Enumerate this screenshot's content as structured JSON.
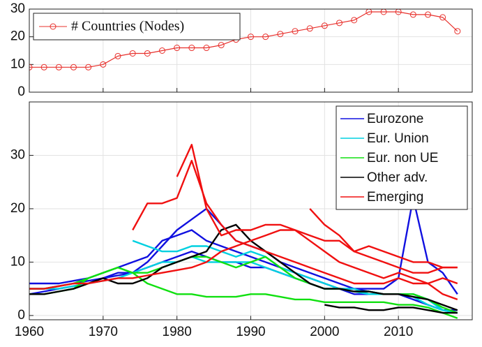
{
  "chart_data": [
    {
      "type": "line",
      "marker": "circle",
      "legend": "upper left",
      "grid": true,
      "x": [
        1960,
        1962,
        1964,
        1966,
        1968,
        1970,
        1972,
        1974,
        1976,
        1978,
        1980,
        1982,
        1984,
        1986,
        1988,
        1990,
        1992,
        1994,
        1996,
        1998,
        2000,
        2002,
        2004,
        2006,
        2008,
        2010,
        2012,
        2014,
        2016,
        2018
      ],
      "xlim": [
        1960,
        2020
      ],
      "ylim": [
        0,
        30
      ],
      "yticks": [
        0,
        10,
        20,
        30
      ],
      "series": [
        {
          "name": "# Countries (Nodes)",
          "color": "#e8302c",
          "values": [
            9,
            9,
            9,
            9,
            9,
            10,
            13,
            14,
            14,
            15,
            16,
            16,
            16,
            17,
            19,
            20,
            20,
            21,
            22,
            23,
            24,
            25,
            26,
            29,
            29,
            29,
            28,
            28,
            27,
            22
          ]
        }
      ]
    },
    {
      "type": "line",
      "legend": "upper right",
      "grid": true,
      "x": [
        1960,
        1962,
        1964,
        1966,
        1968,
        1970,
        1972,
        1974,
        1976,
        1978,
        1980,
        1982,
        1984,
        1986,
        1988,
        1990,
        1992,
        1994,
        1996,
        1998,
        2000,
        2002,
        2004,
        2006,
        2008,
        2010,
        2012,
        2014,
        2016,
        2018
      ],
      "xlim": [
        1960,
        2020
      ],
      "xticks": [
        1960,
        1970,
        1980,
        1990,
        2000,
        2010
      ],
      "ylim": [
        -0.8,
        40
      ],
      "yticks": [
        0,
        10,
        20,
        30
      ],
      "groups": [
        {
          "name": "Eurozone",
          "color": "#1010e0",
          "lines": [
            [
              5,
              5,
              5.5,
              6,
              6.5,
              7,
              7.5,
              8,
              10,
              13,
              16,
              18,
              20,
              17,
              14,
              13,
              12,
              10,
              9,
              8,
              7,
              6,
              5,
              5,
              5,
              7,
              22,
              10,
              8,
              4
            ],
            [
              6,
              6,
              6,
              6.5,
              7,
              8,
              9,
              10,
              11,
              14,
              15,
              16,
              14,
              13,
              12,
              11,
              10,
              9,
              8,
              7,
              6,
              5,
              5,
              4.5,
              4,
              4,
              4,
              3,
              1,
              1
            ],
            [
              4,
              4.5,
              5,
              5.5,
              6,
              7,
              8,
              8,
              9,
              10,
              11,
              12,
              11,
              10,
              10,
              9,
              9,
              8,
              7,
              6,
              5,
              5,
              4,
              4,
              4,
              4,
              3,
              2,
              1,
              0.5
            ]
          ]
        },
        {
          "name": "Eur. Union",
          "color": "#00d0e0",
          "lines": [
            [
              null,
              null,
              null,
              null,
              null,
              null,
              null,
              14,
              13,
              12,
              12,
              13,
              13,
              12,
              11,
              12,
              11,
              9,
              8,
              7,
              6,
              5,
              5,
              4,
              4,
              4,
              4,
              3,
              1,
              0.5
            ],
            [
              5,
              5,
              5,
              5.5,
              6,
              6.5,
              7,
              8,
              9,
              10,
              10,
              11,
              10,
              10,
              10,
              10,
              9,
              8,
              7,
              6,
              5,
              5,
              4.5,
              4,
              4,
              4,
              3.5,
              2,
              1,
              0.5
            ]
          ]
        },
        {
          "name": "Eur. non UE",
          "color": "#10e010",
          "lines": [
            [
              4,
              4,
              4.5,
              5,
              7,
              8,
              9,
              8,
              6,
              5,
              4,
              4,
              3.5,
              3.5,
              3.5,
              4,
              4,
              3.5,
              3,
              3,
              2.5,
              2.5,
              2.5,
              2.5,
              2.5,
              2,
              2,
              1.5,
              0.5,
              -0.5
            ],
            [
              5,
              5,
              5.5,
              6,
              7,
              8,
              9,
              8,
              8,
              9,
              10,
              11,
              11,
              10,
              9,
              10,
              11,
              9,
              7,
              6,
              5,
              5,
              4.5,
              4.5,
              4,
              4,
              4,
              3,
              1.5,
              0.5
            ]
          ]
        },
        {
          "name": "Other adv.",
          "color": "#000000",
          "lines": [
            [
              4,
              4,
              4.5,
              5,
              6,
              7,
              6,
              6,
              7,
              9,
              10,
              11,
              12,
              16,
              17,
              14,
              12,
              10,
              8,
              6,
              5,
              5,
              4.5,
              4.5,
              4,
              4,
              3.5,
              3,
              2,
              1
            ],
            [
              null,
              null,
              null,
              null,
              null,
              null,
              null,
              null,
              null,
              null,
              null,
              null,
              null,
              null,
              null,
              null,
              null,
              null,
              null,
              null,
              2,
              1.5,
              1.5,
              1,
              1,
              1.5,
              1.5,
              1,
              0.5,
              0.5
            ]
          ]
        },
        {
          "name": "Emerging",
          "color": "#f01010",
          "lines": [
            [
              null,
              null,
              null,
              null,
              null,
              null,
              null,
              16,
              21,
              21,
              22,
              29,
              21,
              17,
              14,
              13,
              12,
              11,
              10,
              9,
              8,
              7,
              6,
              6,
              6,
              7,
              6,
              6,
              7,
              6
            ],
            [
              null,
              null,
              null,
              null,
              null,
              null,
              null,
              null,
              null,
              null,
              26,
              32,
              20,
              15,
              16,
              16,
              17,
              17,
              16,
              15,
              14,
              14,
              12,
              13,
              12,
              11,
              10,
              10,
              9,
              9
            ],
            [
              null,
              null,
              null,
              null,
              null,
              null,
              null,
              null,
              null,
              null,
              null,
              null,
              null,
              null,
              null,
              null,
              null,
              null,
              null,
              20,
              17,
              15,
              12,
              11,
              10,
              9,
              8,
              8,
              9,
              9
            ],
            [
              5,
              5,
              5.5,
              6,
              6,
              6.5,
              7,
              7,
              7.5,
              8,
              8.5,
              9,
              10,
              12,
              13,
              14,
              15,
              16,
              16,
              14,
              12,
              10,
              9,
              8,
              7,
              8,
              7,
              6,
              4,
              3
            ]
          ]
        }
      ]
    }
  ]
}
